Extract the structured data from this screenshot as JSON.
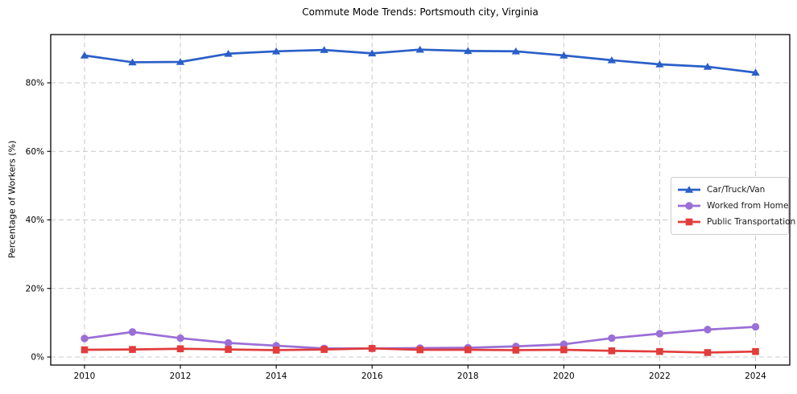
{
  "title": "Commute Mode Trends: Portsmouth city, Virginia",
  "chart_data": {
    "type": "line",
    "title": "Commute Mode Trends: Portsmouth city, Virginia",
    "xlabel": "",
    "ylabel": "Percentage of Workers (%)",
    "x": [
      2010,
      2011,
      2012,
      2013,
      2014,
      2015,
      2016,
      2017,
      2018,
      2019,
      2020,
      2021,
      2022,
      2023,
      2024
    ],
    "series": [
      {
        "name": "Car/Truck/Van",
        "color": "#2a5fc8",
        "marker": "triangle",
        "values": [
          88.0,
          86.0,
          86.1,
          88.5,
          89.2,
          89.6,
          88.6,
          89.7,
          89.3,
          89.2,
          88.0,
          86.6,
          85.4,
          84.7,
          83.0
        ]
      },
      {
        "name": "Worked from Home",
        "color": "#9b6fd6",
        "marker": "circle",
        "values": [
          5.4,
          7.3,
          5.5,
          4.1,
          3.3,
          2.5,
          2.5,
          2.6,
          2.7,
          3.1,
          3.7,
          5.5,
          6.8,
          8.0,
          8.8
        ]
      },
      {
        "name": "Public Transportation",
        "color": "#e23c3c",
        "marker": "square",
        "values": [
          2.1,
          2.2,
          2.4,
          2.2,
          2.0,
          2.2,
          2.5,
          2.1,
          2.1,
          2.0,
          2.1,
          1.8,
          1.6,
          1.3,
          1.6
        ]
      }
    ],
    "xticks": {
      "values": [
        2010,
        2012,
        2014,
        2016,
        2018,
        2020,
        2022,
        2024
      ],
      "labels": [
        "2010",
        "2012",
        "2014",
        "2016",
        "2018",
        "2020",
        "2022",
        "2024"
      ]
    },
    "yticks": {
      "values": [
        0,
        20,
        40,
        60,
        80
      ],
      "labels": [
        "0%",
        "20%",
        "40%",
        "60%",
        "80%"
      ]
    },
    "xlim": [
      2009.295,
      2024.714
    ],
    "ylim": [
      -2.35,
      94.08
    ],
    "grid": true,
    "grid_style": "dashed",
    "legend_position": "center right",
    "colors": {
      "grid": "#c9c9c9",
      "frame": "#000000",
      "text": "#000000"
    }
  }
}
